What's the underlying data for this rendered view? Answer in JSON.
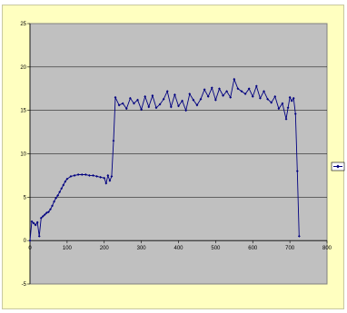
{
  "chart_data": {
    "type": "line",
    "title": "",
    "xlabel": "",
    "ylabel": "",
    "xlim": [
      0,
      800
    ],
    "ylim": [
      -5,
      25
    ],
    "x_ticks": [
      0,
      100,
      200,
      300,
      400,
      500,
      600,
      700,
      800
    ],
    "y_ticks": [
      -5,
      0,
      5,
      10,
      15,
      20,
      25
    ],
    "grid": "horizontal",
    "legend": "right",
    "colors": {
      "series": "#000080",
      "plot_bg": "#c0c0c0",
      "frame_bg": "#ffffc0"
    },
    "series": [
      {
        "x": [
          0,
          5,
          10,
          15,
          20,
          25,
          30,
          35,
          40,
          45,
          50,
          55,
          60,
          65,
          70,
          75,
          80,
          85,
          90,
          95,
          100,
          110,
          120,
          130,
          140,
          150,
          160,
          170,
          180,
          190,
          200,
          205,
          210,
          215,
          220,
          225,
          230,
          240,
          250,
          260,
          270,
          280,
          290,
          300,
          310,
          320,
          330,
          340,
          350,
          360,
          370,
          380,
          390,
          400,
          410,
          420,
          430,
          440,
          450,
          460,
          470,
          480,
          490,
          500,
          510,
          520,
          530,
          540,
          550,
          560,
          570,
          580,
          590,
          600,
          610,
          620,
          630,
          640,
          650,
          660,
          670,
          680,
          690,
          695,
          700,
          705,
          710,
          715,
          720,
          725
        ],
        "y": [
          0,
          2.2,
          2.0,
          1.8,
          2.1,
          0.5,
          2.6,
          2.8,
          3.0,
          3.2,
          3.3,
          3.6,
          4.0,
          4.5,
          4.9,
          5.2,
          5.6,
          6.0,
          6.4,
          6.8,
          7.1,
          7.4,
          7.5,
          7.6,
          7.6,
          7.6,
          7.5,
          7.5,
          7.4,
          7.3,
          7.2,
          6.6,
          7.5,
          6.9,
          7.4,
          11.5,
          16.5,
          15.6,
          15.8,
          15.2,
          16.4,
          15.8,
          16.2,
          15.1,
          16.6,
          15.4,
          16.7,
          15.3,
          15.7,
          16.3,
          17.2,
          15.4,
          16.8,
          15.5,
          16.1,
          15.0,
          16.9,
          16.2,
          15.6,
          16.3,
          17.4,
          16.6,
          17.6,
          16.2,
          17.5,
          16.7,
          17.2,
          16.5,
          18.6,
          17.5,
          17.2,
          16.9,
          17.5,
          16.6,
          17.8,
          16.4,
          17.2,
          16.3,
          15.9,
          16.6,
          15.2,
          15.8,
          14.0,
          15.3,
          16.5,
          16.1,
          16.4,
          14.6,
          8.0,
          0.5
        ]
      }
    ]
  }
}
